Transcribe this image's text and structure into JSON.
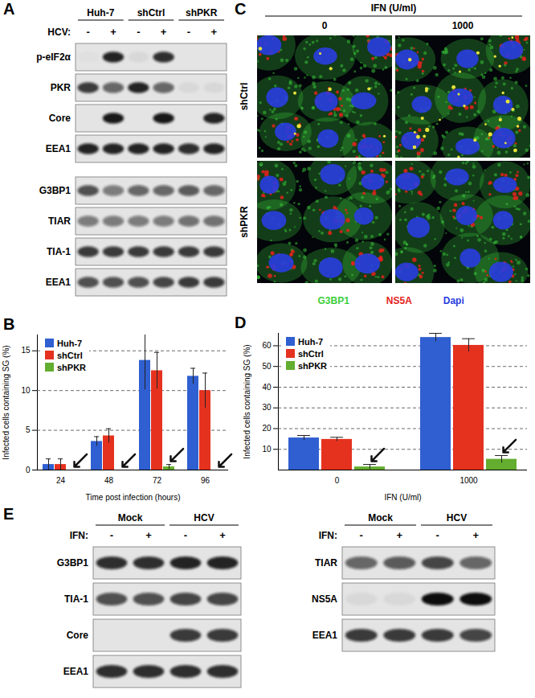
{
  "figure": {
    "A": {
      "letter": "A",
      "columns": [
        "Huh-7",
        "shCtrl",
        "shPKR"
      ],
      "sign_label": "HCV:",
      "signs": [
        "-",
        "+",
        "-",
        "+",
        "-",
        "+"
      ],
      "blots": [
        [
          {
            "label": "p-eIF2α",
            "intensity": [
              0.02,
              0.9,
              0.05,
              0.85,
              0,
              0
            ]
          },
          {
            "label": "PKR",
            "intensity": [
              0.8,
              0.6,
              0.9,
              0.6,
              0.05,
              0.05
            ]
          },
          {
            "label": "Core",
            "intensity": [
              0,
              0.95,
              0,
              0.95,
              0,
              0.9
            ]
          },
          {
            "label": "EEA1",
            "intensity": [
              0.9,
              0.9,
              0.9,
              0.9,
              0.85,
              0.9
            ]
          }
        ],
        [
          {
            "label": "G3BP1",
            "intensity": [
              0.7,
              0.5,
              0.6,
              0.6,
              0.65,
              0.6
            ]
          },
          {
            "label": "TIAR",
            "intensity": [
              0.5,
              0.5,
              0.5,
              0.5,
              0.55,
              0.55
            ]
          },
          {
            "label": "TIA-1",
            "intensity": [
              0.8,
              0.8,
              0.8,
              0.8,
              0.8,
              0.8
            ]
          },
          {
            "label": "EEA1",
            "intensity": [
              0.7,
              0.7,
              0.7,
              0.75,
              0.8,
              0.8
            ]
          }
        ]
      ]
    },
    "C": {
      "letter": "C",
      "header": "IFN (U/ml)",
      "columns": [
        "0",
        "1000"
      ],
      "rows": [
        "shCtrl",
        "shPKR"
      ],
      "legend": [
        {
          "text": "G3BP1",
          "color": "#3ccf3c"
        },
        {
          "text": "NS5A",
          "color": "#e4221c"
        },
        {
          "text": "Dapi",
          "color": "#2a3de0"
        }
      ]
    },
    "E": {
      "letter": "E",
      "panels": [
        {
          "columns": [
            "Mock",
            "HCV"
          ],
          "sign_label": "IFN:",
          "signs": [
            "-",
            "+",
            "-",
            "+"
          ],
          "blots": [
            [
              {
                "label": "G3BP1",
                "intensity": [
                  0.85,
                  0.85,
                  0.9,
                  0.9
                ]
              },
              {
                "label": "TIA-1",
                "intensity": [
                  0.7,
                  0.7,
                  0.75,
                  0.75
                ]
              },
              {
                "label": "Core",
                "intensity": [
                  0,
                  0,
                  0.8,
                  0.8
                ]
              },
              {
                "label": "EEA1",
                "intensity": [
                  0.85,
                  0.85,
                  0.85,
                  0.85
                ]
              }
            ]
          ]
        },
        {
          "columns": [
            "Mock",
            "HCV"
          ],
          "sign_label": "IFN:",
          "signs": [
            "-",
            "+",
            "-",
            "+"
          ],
          "blots": [
            [
              {
                "label": "TIAR",
                "intensity": [
                  0.6,
                  0.65,
                  0.75,
                  0.6
                ]
              },
              {
                "label": "NS5A",
                "intensity": [
                  0.05,
                  0.05,
                  1,
                  1
                ]
              },
              {
                "label": "EEA1",
                "intensity": [
                  0.8,
                  0.8,
                  0.8,
                  0.75
                ]
              }
            ]
          ]
        }
      ]
    }
  },
  "chart_data": [
    {
      "panel": "B",
      "type": "bar",
      "y_label": "Infected cells containing SG (%)",
      "x_label": "Time post infection (hours)",
      "categories": [
        24,
        48,
        72,
        96
      ],
      "series": [
        {
          "name": "Huh-7",
          "color": "#2f5fd0",
          "values": [
            0.7,
            3.6,
            13.8,
            11.8
          ],
          "errors": [
            0.7,
            0.6,
            3.7,
            1.0
          ]
        },
        {
          "name": "shCtrl",
          "color": "#e5321f",
          "values": [
            0.7,
            4.3,
            12.5,
            10.0
          ],
          "errors": [
            0.7,
            0.9,
            2.3,
            2.2
          ]
        },
        {
          "name": "shPKR",
          "color": "#63ad2f",
          "values": [
            0,
            0,
            0.4,
            0
          ],
          "errors": [
            0,
            0,
            0.3,
            0
          ],
          "marker": "arrow"
        }
      ],
      "ylim": [
        0,
        17
      ],
      "yticks": [
        0,
        5,
        10,
        15
      ],
      "grid": true,
      "legend": "top-left"
    },
    {
      "panel": "D",
      "type": "bar",
      "y_label": "Infected cells containing SG (%)",
      "x_label": "IFN (U/ml)",
      "categories": [
        0,
        1000
      ],
      "series": [
        {
          "name": "Huh-7",
          "color": "#2f5fd0",
          "values": [
            15.5,
            64.0
          ],
          "errors": [
            1.2,
            2.0
          ]
        },
        {
          "name": "shCtrl",
          "color": "#e5321f",
          "values": [
            14.8,
            60.2
          ],
          "errors": [
            1.0,
            3.2
          ]
        },
        {
          "name": "shPKR",
          "color": "#63ad2f",
          "values": [
            1.5,
            5.2
          ],
          "errors": [
            1.2,
            1.8
          ],
          "marker": "arrow"
        }
      ],
      "ylim": [
        0,
        66
      ],
      "yticks": [
        10,
        20,
        30,
        40,
        50,
        60
      ],
      "grid": true,
      "legend": "top-left"
    }
  ]
}
